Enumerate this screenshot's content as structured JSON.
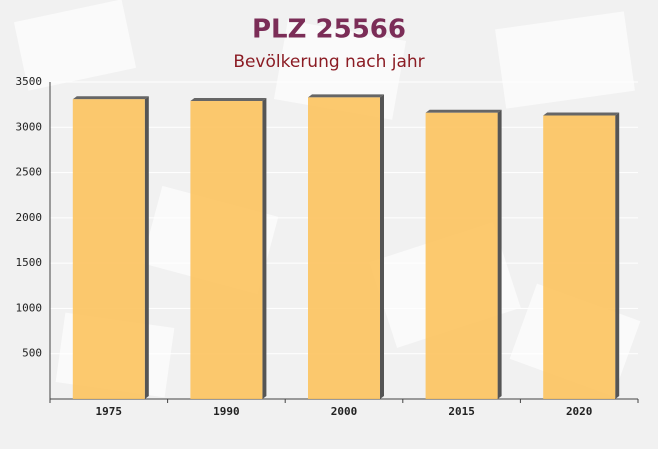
{
  "chart_data": {
    "type": "bar",
    "title": "PLZ 25566",
    "subtitle": "Bevölkerung nach jahr",
    "categories": [
      "1975",
      "1990",
      "2000",
      "2015",
      "2020"
    ],
    "values": [
      3310,
      3290,
      3330,
      3160,
      3130
    ],
    "color": "#fcc35e",
    "ylim": [
      0,
      3500
    ],
    "yticks": [
      500,
      1000,
      1500,
      2000,
      2500,
      3000,
      3500
    ],
    "grid": true
  }
}
